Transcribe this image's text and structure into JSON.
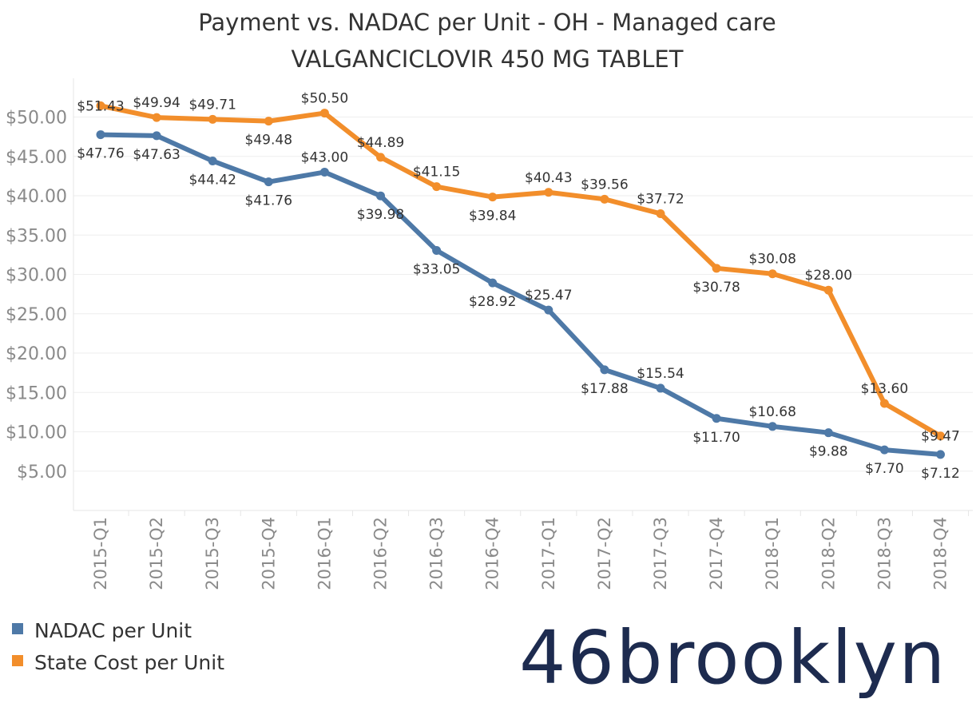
{
  "chart_data": {
    "type": "line",
    "title": "Payment vs. NADAC per Unit - OH - Managed care",
    "subtitle": "VALGANCICLOVIR 450 MG TABLET",
    "categories": [
      "2015-Q1",
      "2015-Q2",
      "2015-Q3",
      "2015-Q4",
      "2016-Q1",
      "2016-Q2",
      "2016-Q3",
      "2016-Q4",
      "2017-Q1",
      "2017-Q2",
      "2017-Q3",
      "2017-Q4",
      "2018-Q1",
      "2018-Q2",
      "2018-Q3",
      "2018-Q4"
    ],
    "y_ticks": [
      "$5.00",
      "$10.00",
      "$15.00",
      "$20.00",
      "$25.00",
      "$30.00",
      "$35.00",
      "$40.00",
      "$45.00",
      "$50.00"
    ],
    "y_tick_values": [
      5,
      10,
      15,
      20,
      25,
      30,
      35,
      40,
      45,
      50
    ],
    "ylim": [
      0,
      53
    ],
    "grid": true,
    "legend_position": "bottom-left",
    "series": [
      {
        "name": "NADAC per Unit",
        "color": "#4e79a7",
        "values": [
          47.76,
          47.63,
          44.42,
          41.76,
          43.0,
          39.98,
          33.05,
          28.92,
          25.47,
          17.88,
          15.54,
          11.7,
          10.68,
          9.88,
          7.7,
          7.12
        ],
        "labels": [
          "$47.76",
          "$47.63",
          "$44.42",
          "$41.76",
          "$43.00",
          "$39.98",
          "$33.05",
          "$28.92",
          "$25.47",
          "$17.88",
          "$15.54",
          "$11.70",
          "$10.68",
          "$9.88",
          "$7.70",
          "$7.12"
        ],
        "label_positions": [
          "below",
          "below",
          "below",
          "below",
          "above",
          "below",
          "below",
          "below",
          "above",
          "below",
          "above",
          "below",
          "above",
          "below",
          "below",
          "below"
        ]
      },
      {
        "name": "State Cost per Unit",
        "color": "#f28e2b",
        "values": [
          51.43,
          49.94,
          49.71,
          49.48,
          50.5,
          44.89,
          41.15,
          39.84,
          40.43,
          39.56,
          37.72,
          30.78,
          30.08,
          28.0,
          13.6,
          9.47
        ],
        "labels": [
          "$51.43",
          "$49.94",
          "$49.71",
          "$49.48",
          "$50.50",
          "$44.89",
          "$41.15",
          "$39.84",
          "$40.43",
          "$39.56",
          "$37.72",
          "$30.78",
          "$30.08",
          "$28.00",
          "$13.60",
          "$9.47"
        ],
        "label_positions": [
          "center",
          "above",
          "above",
          "below",
          "above",
          "above",
          "above",
          "below",
          "above",
          "above",
          "above",
          "below",
          "above",
          "above",
          "above",
          "center"
        ]
      }
    ]
  },
  "legend": [
    {
      "label": "NADAC per Unit",
      "color": "#4e79a7"
    },
    {
      "label": "State Cost per Unit",
      "color": "#f28e2b"
    }
  ],
  "logo": {
    "text": "46brooklyn",
    "color": "#1d2b4f"
  }
}
